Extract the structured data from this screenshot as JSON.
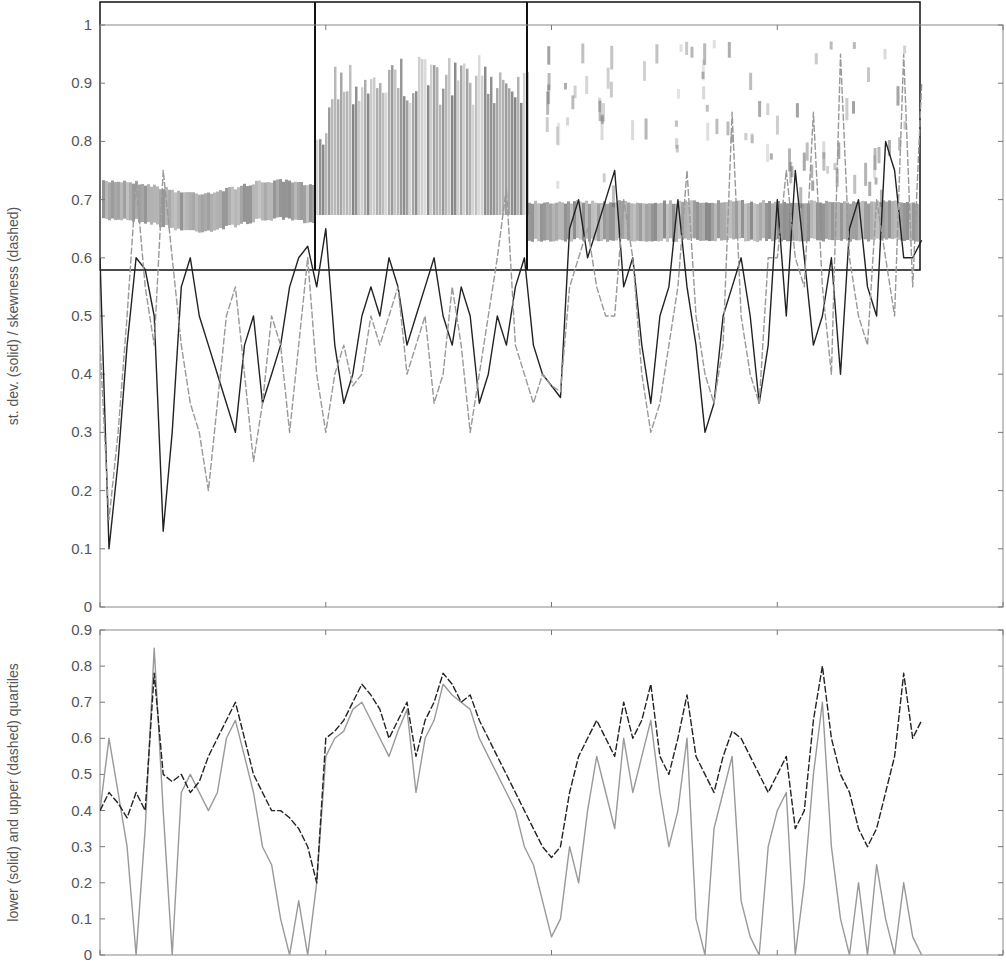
{
  "chart_data": [
    {
      "type": "line",
      "y_label": "st. dev. (solid) / skewness (dashed)",
      "x": [
        0,
        1,
        2,
        3,
        4,
        5,
        6,
        7,
        8,
        9,
        10,
        11,
        12,
        13,
        14,
        15,
        16,
        17,
        18,
        19,
        20,
        21,
        22,
        23,
        24,
        25,
        26,
        27,
        28,
        29,
        30,
        31,
        32,
        33,
        34,
        35,
        36,
        37,
        38,
        39,
        40,
        41,
        42,
        43,
        44,
        45,
        46,
        47,
        48,
        49,
        50,
        51,
        52,
        53,
        54,
        55,
        56,
        57,
        58,
        59,
        60,
        61,
        62,
        63,
        64,
        65,
        66,
        67,
        68,
        69,
        70,
        71,
        72,
        73,
        74,
        75,
        76,
        77,
        78,
        79,
        80,
        81,
        82,
        83,
        84,
        85,
        86,
        87,
        88,
        89,
        90,
        91
      ],
      "xlim": [
        0,
        100
      ],
      "xticks": [
        0,
        25,
        50,
        75,
        100
      ],
      "ylim": [
        0,
        1
      ],
      "yticks": [
        0,
        0.1,
        0.2,
        0.3,
        0.4,
        0.5,
        0.6,
        0.7,
        0.8,
        0.9,
        1
      ],
      "tick_labels": "y",
      "grid": false,
      "series": [
        {
          "color": "#222222",
          "line_style": "solid",
          "values": [
            0.6,
            0.1,
            0.25,
            0.45,
            0.6,
            0.58,
            0.5,
            0.13,
            0.3,
            0.55,
            0.6,
            0.5,
            0.45,
            0.4,
            0.35,
            0.3,
            0.45,
            0.5,
            0.35,
            0.4,
            0.45,
            0.55,
            0.6,
            0.62,
            0.55,
            0.65,
            0.45,
            0.35,
            0.4,
            0.5,
            0.55,
            0.5,
            0.6,
            0.55,
            0.45,
            0.5,
            0.55,
            0.6,
            0.5,
            0.45,
            0.55,
            0.5,
            0.35,
            0.4,
            0.5,
            0.45,
            0.55,
            0.6,
            0.45,
            0.4,
            0.38,
            0.36,
            0.65,
            0.7,
            0.6,
            0.65,
            0.7,
            0.75,
            0.55,
            0.6,
            0.45,
            0.35,
            0.5,
            0.55,
            0.7,
            0.55,
            0.45,
            0.3,
            0.35,
            0.5,
            0.55,
            0.6,
            0.5,
            0.35,
            0.45,
            0.7,
            0.5,
            0.75,
            0.6,
            0.45,
            0.5,
            0.6,
            0.4,
            0.65,
            0.7,
            0.55,
            0.5,
            0.8,
            0.75,
            0.6,
            0.6,
            0.63
          ]
        },
        {
          "color": "#999999",
          "line_style": "dashed",
          "values": [
            0.45,
            0.15,
            0.3,
            0.5,
            0.73,
            0.55,
            0.45,
            0.75,
            0.6,
            0.45,
            0.35,
            0.3,
            0.2,
            0.35,
            0.5,
            0.55,
            0.4,
            0.25,
            0.35,
            0.5,
            0.45,
            0.3,
            0.45,
            0.6,
            0.4,
            0.3,
            0.4,
            0.45,
            0.38,
            0.4,
            0.5,
            0.45,
            0.5,
            0.55,
            0.4,
            0.45,
            0.5,
            0.35,
            0.4,
            0.55,
            0.45,
            0.3,
            0.4,
            0.5,
            0.6,
            0.72,
            0.45,
            0.4,
            0.35,
            0.4,
            0.38,
            0.37,
            0.55,
            0.6,
            0.65,
            0.55,
            0.5,
            0.5,
            0.7,
            0.6,
            0.4,
            0.3,
            0.35,
            0.45,
            0.55,
            0.75,
            0.5,
            0.4,
            0.35,
            0.45,
            0.85,
            0.5,
            0.4,
            0.35,
            0.6,
            0.6,
            0.75,
            0.6,
            0.55,
            0.85,
            0.55,
            0.4,
            0.95,
            0.6,
            0.5,
            0.45,
            0.7,
            0.6,
            0.5,
            0.95,
            0.55,
            0.9
          ]
        }
      ]
    },
    {
      "type": "line",
      "y_label": "lower (solid) and upper (dashed) quartiles",
      "x": [
        0,
        1,
        2,
        3,
        4,
        5,
        6,
        7,
        8,
        9,
        10,
        11,
        12,
        13,
        14,
        15,
        16,
        17,
        18,
        19,
        20,
        21,
        22,
        23,
        24,
        25,
        26,
        27,
        28,
        29,
        30,
        31,
        32,
        33,
        34,
        35,
        36,
        37,
        38,
        39,
        40,
        41,
        42,
        43,
        44,
        45,
        46,
        47,
        48,
        49,
        50,
        51,
        52,
        53,
        54,
        55,
        56,
        57,
        58,
        59,
        60,
        61,
        62,
        63,
        64,
        65,
        66,
        67,
        68,
        69,
        70,
        71,
        72,
        73,
        74,
        75,
        76,
        77,
        78,
        79,
        80,
        81,
        82,
        83,
        84,
        85,
        86,
        87,
        88,
        89,
        90,
        91
      ],
      "xlim": [
        0,
        100
      ],
      "xticks": [
        0,
        25,
        50,
        75,
        100
      ],
      "ylim": [
        0,
        0.9
      ],
      "yticks": [
        0,
        0.1,
        0.2,
        0.3,
        0.4,
        0.5,
        0.6,
        0.7,
        0.8,
        0.9
      ],
      "tick_labels": "y",
      "grid": false,
      "series": [
        {
          "color": "#999999",
          "line_style": "solid",
          "values": [
            0.4,
            0.6,
            0.45,
            0.3,
            0,
            0.35,
            0.85,
            0.4,
            0,
            0.45,
            0.5,
            0.45,
            0.4,
            0.45,
            0.6,
            0.65,
            0.55,
            0.45,
            0.3,
            0.25,
            0.1,
            0,
            0.15,
            0,
            0.2,
            0.55,
            0.6,
            0.62,
            0.68,
            0.7,
            0.65,
            0.6,
            0.55,
            0.62,
            0.68,
            0.45,
            0.6,
            0.65,
            0.75,
            0.72,
            0.7,
            0.68,
            0.6,
            0.55,
            0.5,
            0.45,
            0.4,
            0.3,
            0.25,
            0.15,
            0.05,
            0.1,
            0.3,
            0.2,
            0.4,
            0.55,
            0.45,
            0.35,
            0.6,
            0.45,
            0.55,
            0.65,
            0.45,
            0.3,
            0.4,
            0.6,
            0.1,
            0,
            0.35,
            0.45,
            0.55,
            0.15,
            0.05,
            0,
            0.3,
            0.4,
            0.45,
            0,
            0.2,
            0.5,
            0.7,
            0.3,
            0.1,
            0,
            0.2,
            0,
            0.25,
            0.1,
            0,
            0.2,
            0.05,
            0
          ]
        },
        {
          "color": "#222222",
          "line_style": "dashed",
          "values": [
            0.4,
            0.45,
            0.42,
            0.38,
            0.45,
            0.4,
            0.78,
            0.5,
            0.48,
            0.5,
            0.45,
            0.48,
            0.55,
            0.6,
            0.65,
            0.7,
            0.6,
            0.5,
            0.45,
            0.4,
            0.4,
            0.38,
            0.35,
            0.3,
            0.2,
            0.6,
            0.62,
            0.65,
            0.7,
            0.75,
            0.72,
            0.68,
            0.6,
            0.65,
            0.7,
            0.55,
            0.65,
            0.7,
            0.78,
            0.75,
            0.7,
            0.72,
            0.65,
            0.6,
            0.55,
            0.5,
            0.45,
            0.4,
            0.35,
            0.3,
            0.27,
            0.3,
            0.45,
            0.55,
            0.6,
            0.65,
            0.6,
            0.55,
            0.7,
            0.6,
            0.65,
            0.75,
            0.55,
            0.5,
            0.6,
            0.72,
            0.55,
            0.5,
            0.45,
            0.55,
            0.62,
            0.6,
            0.55,
            0.5,
            0.45,
            0.5,
            0.55,
            0.35,
            0.4,
            0.65,
            0.8,
            0.6,
            0.5,
            0.45,
            0.35,
            0.3,
            0.35,
            0.45,
            0.55,
            0.78,
            0.6,
            0.65
          ]
        }
      ]
    }
  ]
}
